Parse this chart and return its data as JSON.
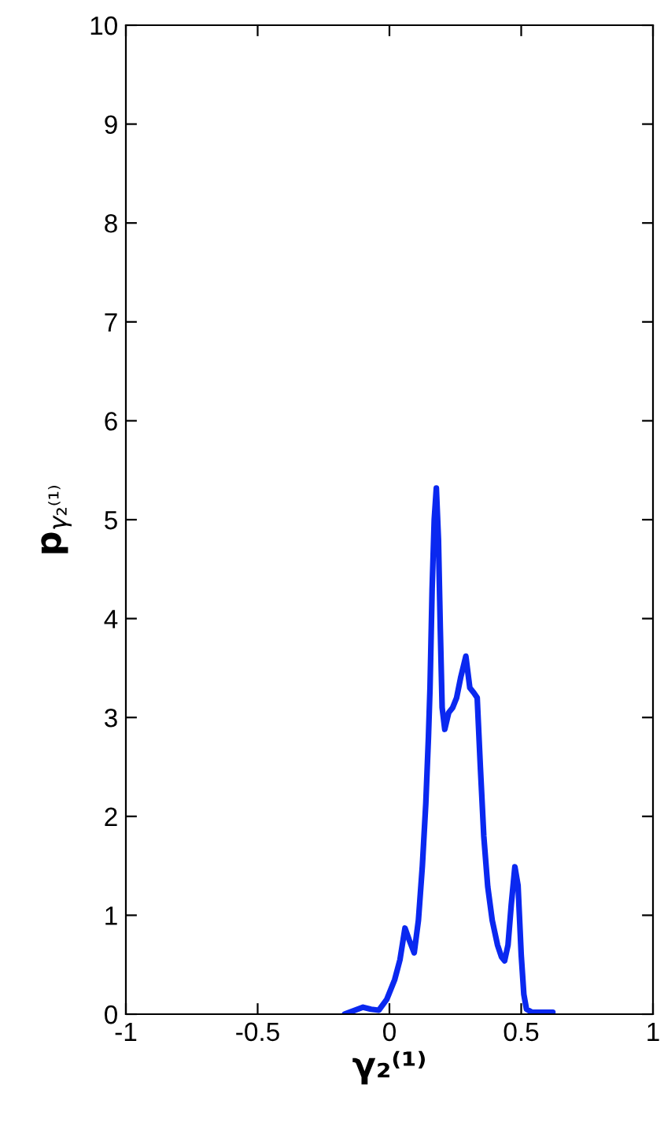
{
  "chart_data": {
    "type": "line",
    "xlabel": "γ₂⁽¹⁾",
    "ylabel": "p$_{γ₂⁽¹⁾}$",
    "xlim": [
      -1,
      1
    ],
    "xticks": [
      -1,
      -0.5,
      0,
      0.5,
      1
    ],
    "ylim": [
      0,
      10
    ],
    "yticks": [
      0,
      1,
      2,
      3,
      4,
      5,
      6,
      7,
      8,
      9,
      10
    ],
    "grid": false,
    "line_style": "solid",
    "marker": "none",
    "series": [
      {
        "color": "#0a28f0",
        "x": [
          -0.17,
          -0.13,
          -0.1,
          -0.07,
          -0.04,
          -0.01,
          0.02,
          0.04,
          0.059,
          0.075,
          0.094,
          0.11,
          0.125,
          0.138,
          0.148,
          0.154,
          0.162,
          0.17,
          0.178,
          0.186,
          0.193,
          0.2,
          0.21,
          0.225,
          0.24,
          0.255,
          0.27,
          0.29,
          0.305,
          0.32,
          0.333,
          0.345,
          0.358,
          0.373,
          0.39,
          0.41,
          0.425,
          0.437,
          0.45,
          0.462,
          0.476,
          0.488,
          0.5,
          0.51,
          0.52,
          0.54,
          0.57,
          0.62
        ],
        "values": [
          0.0,
          0.04,
          0.07,
          0.05,
          0.04,
          0.15,
          0.35,
          0.55,
          0.87,
          0.75,
          0.62,
          0.95,
          1.5,
          2.13,
          2.8,
          3.3,
          4.3,
          5.0,
          5.32,
          4.8,
          3.9,
          3.1,
          2.88,
          3.05,
          3.1,
          3.2,
          3.4,
          3.62,
          3.3,
          3.25,
          3.2,
          2.5,
          1.8,
          1.29,
          0.95,
          0.7,
          0.58,
          0.54,
          0.7,
          1.1,
          1.49,
          1.3,
          0.6,
          0.2,
          0.05,
          0.02,
          0.02,
          0.02
        ]
      }
    ]
  }
}
